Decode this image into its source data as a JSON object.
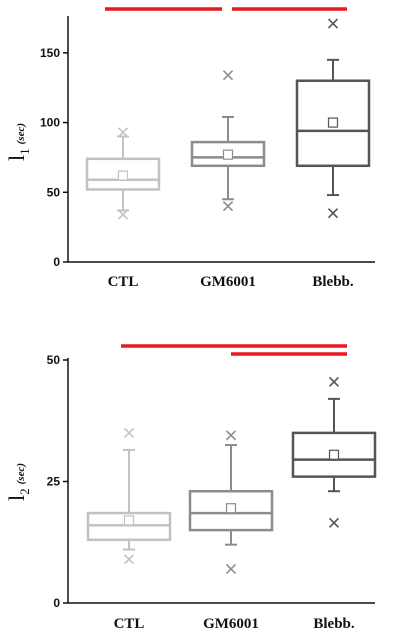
{
  "chart_data": [
    {
      "type": "box",
      "ylabel": {
        "main": "l",
        "sub": "1",
        "unit": "(sec)"
      },
      "ylim": [
        0,
        175
      ],
      "yticks": [
        0,
        50,
        100,
        150
      ],
      "categories": [
        "CTL",
        "GM6001",
        "Blebb."
      ],
      "colors": [
        "#c2c2c2",
        "#8c8c8c",
        "#555555"
      ],
      "boxes": [
        {
          "label": "CTL",
          "whisker_low": 37,
          "q1": 52,
          "median": 59,
          "q3": 74,
          "whisker_high": 90,
          "mean": 62,
          "outliers": [
            34,
            93
          ]
        },
        {
          "label": "GM6001",
          "whisker_low": 45,
          "q1": 69,
          "median": 75,
          "q3": 86,
          "whisker_high": 104,
          "mean": 77,
          "outliers": [
            40,
            134
          ]
        },
        {
          "label": "Blebb.",
          "whisker_low": 48,
          "q1": 69,
          "median": 94,
          "q3": 130,
          "whisker_high": 145,
          "mean": 100,
          "outliers": [
            35,
            171
          ]
        }
      ],
      "significance_bars": [
        {
          "from": "CTL",
          "to": "GM6001"
        },
        {
          "from": "GM6001",
          "to": "Blebb."
        }
      ]
    },
    {
      "type": "box",
      "ylabel": {
        "main": "l",
        "sub": "2",
        "unit": "(sec)"
      },
      "ylim": [
        0,
        50
      ],
      "yticks": [
        0,
        25,
        50
      ],
      "categories": [
        "CTL",
        "GM6001",
        "Blebb."
      ],
      "colors": [
        "#c2c2c2",
        "#8c8c8c",
        "#555555"
      ],
      "boxes": [
        {
          "label": "CTL",
          "whisker_low": 11,
          "q1": 13,
          "median": 16,
          "q3": 18.5,
          "whisker_high": 31.5,
          "mean": 17,
          "outliers": [
            9,
            35
          ]
        },
        {
          "label": "GM6001",
          "whisker_low": 12,
          "q1": 15,
          "median": 18.5,
          "q3": 23,
          "whisker_high": 32.5,
          "mean": 19.5,
          "outliers": [
            7,
            34.5
          ]
        },
        {
          "label": "Blebb.",
          "whisker_low": 23,
          "q1": 26,
          "median": 29.5,
          "q3": 35,
          "whisker_high": 42,
          "mean": 30.5,
          "outliers": [
            16.5,
            45.5
          ]
        }
      ],
      "significance_bars": [
        {
          "from": "CTL",
          "to": "Blebb."
        },
        {
          "from": "GM6001",
          "to": "Blebb."
        }
      ]
    }
  ]
}
